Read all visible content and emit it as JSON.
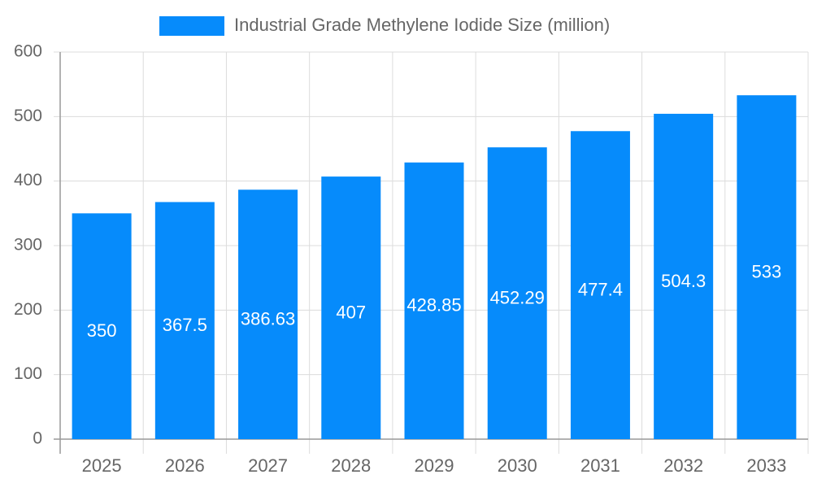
{
  "chart_data": {
    "type": "bar",
    "categories": [
      "2025",
      "2026",
      "2027",
      "2028",
      "2029",
      "2030",
      "2031",
      "2032",
      "2033"
    ],
    "series": [
      {
        "name": "Industrial Grade Methylene Iodide Size (million)",
        "color": "#068bfb",
        "values": [
          350,
          367.5,
          386.63,
          407,
          428.85,
          452.29,
          477.4,
          504.3,
          533
        ]
      }
    ],
    "ylim": [
      0,
      600
    ],
    "yticks": [
      0,
      100,
      200,
      300,
      400,
      500,
      600
    ],
    "grid": true,
    "legend": "top"
  }
}
